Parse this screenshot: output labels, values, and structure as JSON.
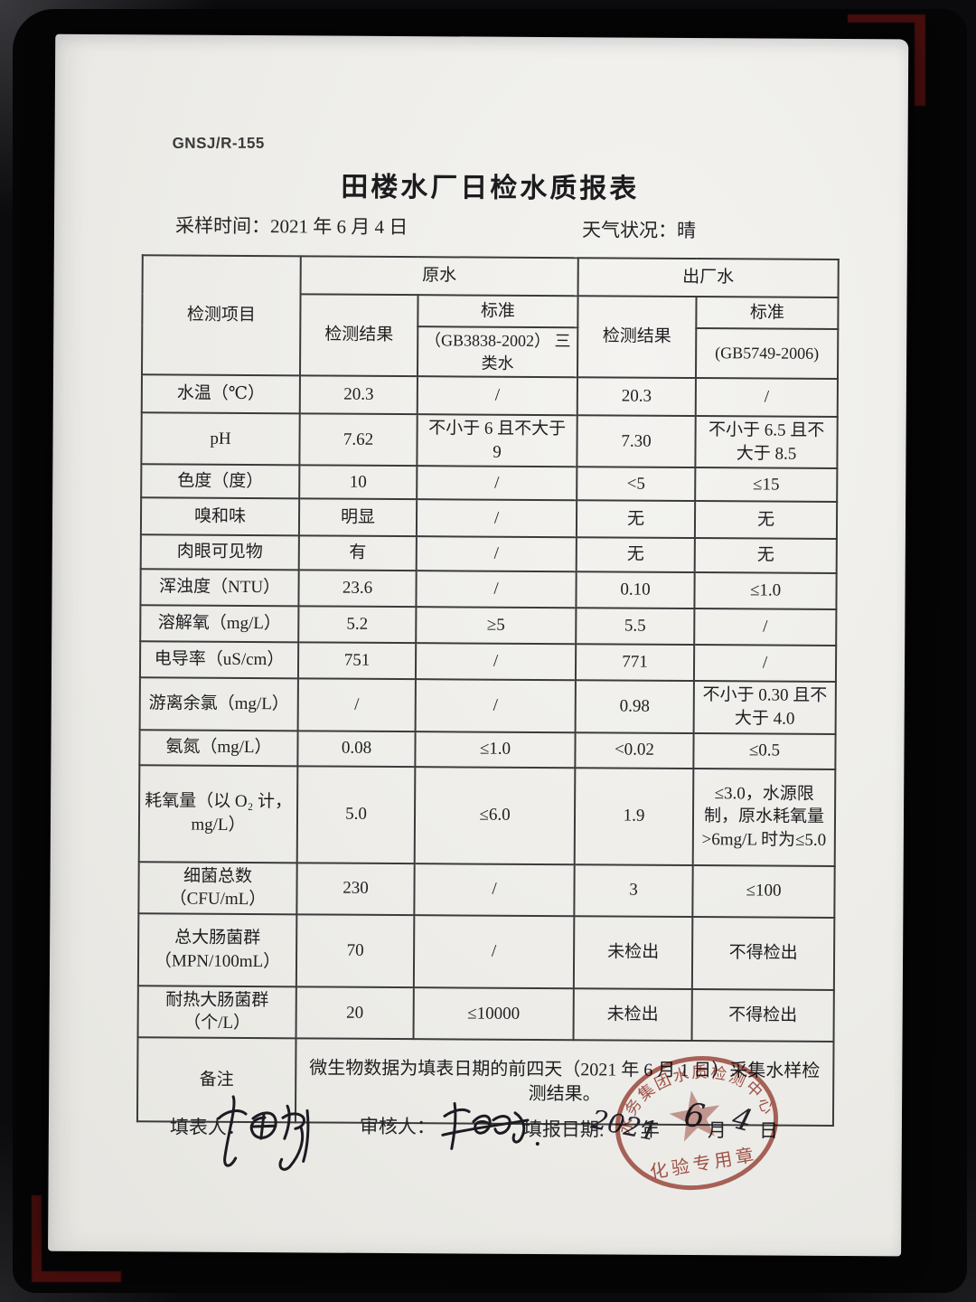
{
  "meta": {
    "form_code": "GNSJ/R-155",
    "title": "田楼水厂日检水质报表",
    "sample_time_label": "采样时间：",
    "sample_time_value": "2021 年 6 月 4 日",
    "weather_label": "天气状况：",
    "weather_value": "晴"
  },
  "table": {
    "header": {
      "item": "检测项目",
      "raw_water": "原水",
      "finished_water": "出厂水",
      "result_raw": "检测结果",
      "standard_raw": "标准",
      "result_out": "检测结果",
      "standard_out": "标准",
      "raw_standard_note": "（GB3838-2002） 三类水",
      "out_standard_note": "(GB5749-2006)"
    },
    "rows": [
      {
        "item": "水温（℃）",
        "raw_result": "20.3",
        "raw_std": "/",
        "out_result": "20.3",
        "out_std": "/"
      },
      {
        "item": "pH",
        "raw_result": "7.62",
        "raw_std": "不小于 6 且不大于 9",
        "out_result": "7.30",
        "out_std": "不小于 6.5 且不大于 8.5"
      },
      {
        "item": "色度（度）",
        "raw_result": "10",
        "raw_std": "/",
        "out_result": "<5",
        "out_std": "≤15"
      },
      {
        "item": "嗅和味",
        "raw_result": "明显",
        "raw_std": "/",
        "out_result": "无",
        "out_std": "无"
      },
      {
        "item": "肉眼可见物",
        "raw_result": "有",
        "raw_std": "/",
        "out_result": "无",
        "out_std": "无"
      },
      {
        "item": "浑浊度（NTU）",
        "raw_result": "23.6",
        "raw_std": "/",
        "out_result": "0.10",
        "out_std": "≤1.0"
      },
      {
        "item": "溶解氧（mg/L）",
        "raw_result": "5.2",
        "raw_std": "≥5",
        "out_result": "5.5",
        "out_std": "/"
      },
      {
        "item": "电导率（uS/cm）",
        "raw_result": "751",
        "raw_std": "/",
        "out_result": "771",
        "out_std": "/"
      },
      {
        "item": "游离余氯（mg/L）",
        "raw_result": "/",
        "raw_std": "/",
        "out_result": "0.98",
        "out_std": "不小于 0.30 且不大于 4.0"
      },
      {
        "item": "氨氮（mg/L）",
        "raw_result": "0.08",
        "raw_std": "≤1.0",
        "out_result": "<0.02",
        "out_std": "≤0.5"
      },
      {
        "item": "耗氧量（以 O₂ 计，mg/L）",
        "raw_result": "5.0",
        "raw_std": "≤6.0",
        "out_result": "1.9",
        "out_std": "≤3.0，水源限制，原水耗氧量>6mg/L 时为≤5.0"
      },
      {
        "item": "细菌总数（CFU/mL）",
        "raw_result": "230",
        "raw_std": "/",
        "out_result": "3",
        "out_std": "≤100"
      },
      {
        "item": "总大肠菌群（MPN/100mL）",
        "raw_result": "70",
        "raw_std": "/",
        "out_result": "未检出",
        "out_std": "不得检出"
      },
      {
        "item": "耐热大肠菌群（个/L）",
        "raw_result": "20",
        "raw_std": "≤10000",
        "out_result": "未检出",
        "out_std": "不得检出"
      }
    ],
    "remark_label": "备注",
    "remark_text": "微生物数据为填表日期的前四天（2021 年 6 月 1 日）采集水样检测结果。"
  },
  "footer": {
    "filler_label": "填表人：",
    "reviewer_label": "审核人：",
    "date_label": "填报日期:",
    "date_year_hw": "2021",
    "year_unit": "年",
    "date_month_hw": "6",
    "month_unit": "月",
    "date_day_hw": "4",
    "day_unit": "日"
  },
  "stamp": {
    "arc_text": "水务集团水质检测中心",
    "bottom_text": "化验专用章",
    "color": "#9c3a2e"
  },
  "colors": {
    "paper": "#efeeea",
    "stamp_red": "#9c3a2e",
    "bracket_red": "#4e100e"
  }
}
